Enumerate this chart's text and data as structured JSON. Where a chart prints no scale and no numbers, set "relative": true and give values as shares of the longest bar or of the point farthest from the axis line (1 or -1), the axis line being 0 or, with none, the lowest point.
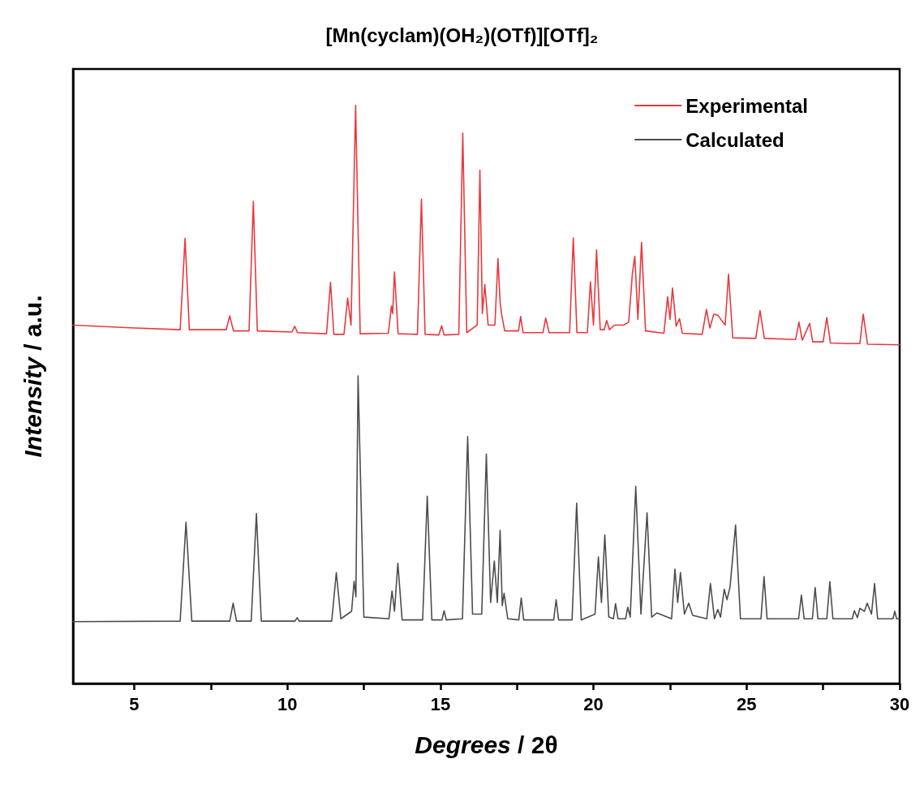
{
  "chart_data": {
    "type": "line",
    "title": "[Mn(cyclam)(OH₂)(OTf)][OTf]₂",
    "xlabel": "Degrees / 2θ",
    "ylabel": "Intensity / a.u.",
    "relative": true,
    "legend": "top right",
    "grid": false,
    "marker": "none",
    "line_style": "solid",
    "xlim": [
      3,
      30
    ],
    "xticks": [
      5,
      {
        "value": 7.5,
        "label": null
      },
      10,
      {
        "value": 12.5,
        "label": null
      },
      15,
      {
        "value": 17.5,
        "label": null
      },
      20,
      {
        "value": 22.5,
        "label": null
      },
      25,
      {
        "value": 27.5,
        "label": null
      },
      30
    ],
    "series": [
      {
        "name": "Experimental",
        "color": "#e8393f",
        "x": [
          3,
          5,
          6.5,
          6.66,
          6.8,
          8.0,
          8.12,
          8.24,
          8.75,
          8.89,
          9.02,
          10.15,
          10.24,
          10.33,
          11.28,
          11.41,
          11.52,
          11.85,
          11.97,
          12.08,
          12.23,
          12.38,
          13.3,
          13.4,
          13.44,
          13.5,
          13.62,
          14.25,
          14.38,
          14.5,
          14.95,
          15.04,
          15.12,
          15.6,
          15.73,
          15.86,
          16.2,
          16.29,
          16.37,
          16.45,
          16.56,
          16.78,
          16.88,
          16.95,
          17.0,
          17.1,
          17.55,
          17.62,
          17.7,
          18.35,
          18.44,
          18.55,
          19.22,
          19.34,
          19.46,
          19.8,
          19.9,
          20.0,
          20.1,
          20.22,
          20.35,
          20.43,
          20.52,
          20.69,
          20.98,
          21.15,
          21.27,
          21.35,
          21.45,
          21.57,
          21.7,
          22.3,
          22.42,
          22.5,
          22.58,
          22.7,
          22.81,
          22.9,
          23.55,
          23.69,
          23.8,
          23.93,
          24.06,
          24.3,
          24.41,
          24.55,
          25.3,
          25.44,
          25.58,
          26.6,
          26.71,
          26.82,
          27.06,
          27.16,
          27.5,
          27.62,
          27.74,
          28.3,
          28.7,
          28.81,
          28.95,
          30
        ],
        "values": [
          0.62,
          0.615,
          0.612,
          0.77,
          0.612,
          0.612,
          0.636,
          0.61,
          0.61,
          0.834,
          0.61,
          0.608,
          0.618,
          0.607,
          0.605,
          0.694,
          0.604,
          0.604,
          0.667,
          0.62,
          1.0,
          0.605,
          0.606,
          0.653,
          0.64,
          0.712,
          0.605,
          0.604,
          0.838,
          0.604,
          0.603,
          0.619,
          0.603,
          0.604,
          0.952,
          0.607,
          0.62,
          0.888,
          0.64,
          0.69,
          0.62,
          0.62,
          0.735,
          0.66,
          0.638,
          0.61,
          0.61,
          0.635,
          0.607,
          0.607,
          0.632,
          0.607,
          0.607,
          0.771,
          0.607,
          0.607,
          0.695,
          0.62,
          0.75,
          0.612,
          0.612,
          0.628,
          0.612,
          0.62,
          0.62,
          0.625,
          0.709,
          0.739,
          0.63,
          0.763,
          0.61,
          0.606,
          0.669,
          0.63,
          0.684,
          0.618,
          0.631,
          0.606,
          0.604,
          0.647,
          0.615,
          0.639,
          0.637,
          0.62,
          0.708,
          0.598,
          0.597,
          0.645,
          0.597,
          0.595,
          0.625,
          0.594,
          0.623,
          0.591,
          0.591,
          0.633,
          0.589,
          0.588,
          0.588,
          0.639,
          0.587,
          0.586
        ]
      },
      {
        "name": "Calculated",
        "color": "#4d4d4d",
        "x": [
          3,
          6.5,
          6.69,
          6.88,
          8.12,
          8.23,
          8.34,
          8.82,
          8.99,
          9.15,
          10.25,
          10.32,
          10.39,
          11.45,
          11.6,
          11.75,
          12.1,
          12.18,
          12.24,
          12.31,
          12.5,
          13.32,
          13.42,
          13.5,
          13.61,
          13.75,
          14.42,
          14.57,
          14.72,
          15.05,
          15.12,
          15.19,
          15.72,
          15.89,
          16.05,
          16.35,
          16.5,
          16.64,
          16.76,
          16.86,
          16.95,
          17.02,
          17.08,
          17.2,
          17.56,
          17.64,
          17.72,
          18.7,
          18.78,
          18.86,
          19.3,
          19.45,
          19.6,
          20.05,
          20.16,
          20.26,
          20.37,
          20.5,
          20.65,
          20.72,
          20.8,
          21.05,
          21.12,
          21.2,
          21.38,
          21.55,
          21.75,
          21.9,
          22.07,
          22.55,
          22.66,
          22.75,
          22.84,
          22.97,
          23.11,
          23.24,
          23.7,
          23.82,
          23.95,
          24.06,
          24.15,
          24.27,
          24.36,
          24.46,
          24.64,
          24.8,
          25.47,
          25.57,
          25.67,
          26.7,
          26.79,
          26.88,
          27.15,
          27.24,
          27.33,
          27.62,
          27.72,
          27.82,
          28.45,
          28.52,
          28.62,
          28.7,
          28.85,
          28.94,
          29.08,
          29.18,
          29.28,
          29.78,
          29.84,
          29.9,
          30
        ],
        "values": [
          0.107,
          0.108,
          0.279,
          0.108,
          0.108,
          0.139,
          0.108,
          0.108,
          0.294,
          0.108,
          0.108,
          0.114,
          0.108,
          0.108,
          0.192,
          0.112,
          0.125,
          0.177,
          0.15,
          0.532,
          0.115,
          0.112,
          0.16,
          0.125,
          0.208,
          0.11,
          0.11,
          0.324,
          0.11,
          0.11,
          0.126,
          0.11,
          0.112,
          0.427,
          0.12,
          0.12,
          0.397,
          0.14,
          0.212,
          0.14,
          0.265,
          0.135,
          0.156,
          0.112,
          0.11,
          0.148,
          0.11,
          0.11,
          0.145,
          0.11,
          0.11,
          0.312,
          0.11,
          0.12,
          0.219,
          0.14,
          0.257,
          0.115,
          0.112,
          0.138,
          0.112,
          0.112,
          0.132,
          0.115,
          0.341,
          0.12,
          0.295,
          0.115,
          0.122,
          0.112,
          0.198,
          0.14,
          0.192,
          0.12,
          0.139,
          0.118,
          0.112,
          0.173,
          0.112,
          0.128,
          0.115,
          0.163,
          0.145,
          0.167,
          0.274,
          0.112,
          0.112,
          0.185,
          0.112,
          0.112,
          0.153,
          0.112,
          0.112,
          0.166,
          0.112,
          0.112,
          0.176,
          0.112,
          0.112,
          0.126,
          0.114,
          0.13,
          0.125,
          0.139,
          0.12,
          0.173,
          0.112,
          0.112,
          0.125,
          0.112,
          0.112
        ]
      }
    ]
  }
}
